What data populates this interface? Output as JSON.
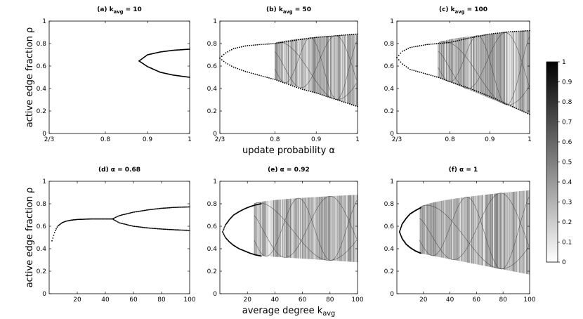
{
  "chart_data": [
    {
      "id": "a",
      "type": "scatter",
      "subtype": "bifurcation-diagram",
      "title": {
        "prefix": "(a) k",
        "sub": "avg",
        "suffix": " = 10"
      },
      "xlabel": "",
      "ylabel": "active edge fraction ρ",
      "xlim": [
        0.6667,
        1
      ],
      "ylim": [
        0,
        1
      ],
      "x_ticks": [
        {
          "value": 0.6667,
          "label": "2/3"
        },
        {
          "value": 0.8,
          "label": "0.8"
        },
        {
          "value": 0.9,
          "label": "0.9"
        },
        {
          "value": 1,
          "label": "1"
        }
      ],
      "y_ticks": [
        0,
        0.2,
        0.4,
        0.6,
        0.8,
        1
      ],
      "branches": [
        {
          "x": [
            0.88,
            0.9,
            0.93,
            0.96,
            1.0
          ],
          "y": [
            0.645,
            0.7,
            0.725,
            0.74,
            0.75
          ]
        },
        {
          "x": [
            0.88,
            0.9,
            0.93,
            0.96,
            1.0
          ],
          "y": [
            0.645,
            0.595,
            0.545,
            0.52,
            0.5
          ]
        }
      ]
    },
    {
      "id": "b",
      "type": "scatter",
      "subtype": "bifurcation-diagram",
      "title": {
        "prefix": "(b) k",
        "sub": "avg",
        "suffix": " = 50"
      },
      "xlabel": "update probability α",
      "ylabel": "",
      "xlim": [
        0.6667,
        1
      ],
      "ylim": [
        0,
        1
      ],
      "x_ticks": [
        {
          "value": 0.6667,
          "label": "2/3"
        },
        {
          "value": 0.8,
          "label": "0.8"
        },
        {
          "value": 0.9,
          "label": "0.9"
        },
        {
          "value": 1,
          "label": "1"
        }
      ],
      "y_ticks": [
        0,
        0.2,
        0.4,
        0.6,
        0.8,
        1
      ],
      "branches": [
        {
          "x": [
            0.6667,
            0.68,
            0.7,
            0.73,
            0.76,
            0.8,
            0.85,
            0.9,
            0.95,
            1.0
          ],
          "y": [
            0.67,
            0.715,
            0.755,
            0.78,
            0.79,
            0.8,
            0.83,
            0.855,
            0.87,
            0.885
          ]
        },
        {
          "x": [
            0.6667,
            0.68,
            0.7,
            0.73,
            0.76,
            0.8,
            0.83,
            0.86,
            0.9,
            0.95,
            1.0
          ],
          "y": [
            0.67,
            0.63,
            0.59,
            0.55,
            0.52,
            0.48,
            0.44,
            0.4,
            0.36,
            0.3,
            0.24
          ]
        }
      ],
      "chaos_band": {
        "x_start": 0.8,
        "x_end": 1.0,
        "upper": [
          0.8,
          0.885
        ],
        "lower": [
          0.48,
          0.24
        ]
      }
    },
    {
      "id": "c",
      "type": "scatter",
      "subtype": "bifurcation-diagram",
      "title": {
        "prefix": "(c) k",
        "sub": "avg",
        "suffix": " = 100"
      },
      "xlabel": "",
      "ylabel": "",
      "xlim": [
        0.6667,
        1
      ],
      "ylim": [
        0,
        1
      ],
      "x_ticks": [
        {
          "value": 0.6667,
          "label": "2/3"
        },
        {
          "value": 0.8,
          "label": "0.8"
        },
        {
          "value": 0.9,
          "label": "0.9"
        },
        {
          "value": 1,
          "label": "1"
        }
      ],
      "y_ticks": [
        0,
        0.2,
        0.4,
        0.6,
        0.8,
        1
      ],
      "branches": [
        {
          "x": [
            0.6667,
            0.68,
            0.7,
            0.74,
            0.77,
            0.8,
            0.85,
            0.9,
            0.95,
            1.0
          ],
          "y": [
            0.675,
            0.73,
            0.765,
            0.79,
            0.8,
            0.81,
            0.85,
            0.885,
            0.905,
            0.915
          ]
        },
        {
          "x": [
            0.6667,
            0.68,
            0.7,
            0.74,
            0.77,
            0.8,
            0.85,
            0.9,
            0.95,
            1.0
          ],
          "y": [
            0.675,
            0.62,
            0.57,
            0.53,
            0.5,
            0.46,
            0.4,
            0.33,
            0.25,
            0.17
          ]
        }
      ],
      "chaos_band": {
        "x_start": 0.77,
        "x_end": 1.0,
        "upper": [
          0.8,
          0.915
        ],
        "lower": [
          0.5,
          0.17
        ]
      }
    },
    {
      "id": "d",
      "type": "scatter",
      "subtype": "bifurcation-diagram",
      "title": {
        "prefix": "(d) α = 0.68",
        "sub": "",
        "suffix": ""
      },
      "xlabel": "",
      "ylabel": "active edge fraction ρ",
      "xlim": [
        0,
        100
      ],
      "ylim": [
        0,
        1
      ],
      "x_ticks": [
        {
          "value": 20,
          "label": "20"
        },
        {
          "value": 40,
          "label": "40"
        },
        {
          "value": 60,
          "label": "60"
        },
        {
          "value": 80,
          "label": "80"
        },
        {
          "value": 100,
          "label": "100"
        }
      ],
      "y_ticks": [
        0,
        0.2,
        0.4,
        0.6,
        0.8,
        1
      ],
      "branches": [
        {
          "x": [
            2,
            4,
            6,
            9,
            12,
            16,
            20,
            30,
            40,
            45
          ],
          "y": [
            0.47,
            0.55,
            0.6,
            0.63,
            0.645,
            0.655,
            0.66,
            0.665,
            0.665,
            0.665
          ]
        },
        {
          "x": [
            45,
            50,
            60,
            70,
            80,
            90,
            100
          ],
          "y": [
            0.665,
            0.695,
            0.725,
            0.745,
            0.76,
            0.768,
            0.772
          ]
        },
        {
          "x": [
            45,
            50,
            60,
            70,
            80,
            90,
            100
          ],
          "y": [
            0.665,
            0.63,
            0.6,
            0.585,
            0.575,
            0.568,
            0.563
          ]
        }
      ]
    },
    {
      "id": "e",
      "type": "scatter",
      "subtype": "bifurcation-diagram",
      "title": {
        "prefix": "(e) α = 0.92",
        "sub": "",
        "suffix": ""
      },
      "xlabel": "average degree k",
      "xlabel_sub": "avg",
      "ylabel": "",
      "xlim": [
        0,
        100
      ],
      "ylim": [
        0,
        1
      ],
      "x_ticks": [
        {
          "value": 20,
          "label": "20"
        },
        {
          "value": 40,
          "label": "40"
        },
        {
          "value": 60,
          "label": "60"
        },
        {
          "value": 80,
          "label": "80"
        },
        {
          "value": 100,
          "label": "100"
        }
      ],
      "y_ticks": [
        0,
        0.2,
        0.4,
        0.6,
        0.8,
        1
      ],
      "branches": [
        {
          "x": [
            2,
            4,
            7,
            10,
            14,
            18,
            22,
            26,
            30
          ],
          "y": [
            0.55,
            0.61,
            0.66,
            0.7,
            0.73,
            0.755,
            0.775,
            0.79,
            0.8
          ]
        },
        {
          "x": [
            2,
            4,
            7,
            10,
            14,
            18,
            22,
            26,
            30
          ],
          "y": [
            0.55,
            0.5,
            0.46,
            0.43,
            0.4,
            0.38,
            0.36,
            0.345,
            0.335
          ]
        }
      ],
      "chaos_band": {
        "x_start": 25,
        "x_end": 100,
        "upper": [
          0.8,
          0.88
        ],
        "lower": [
          0.34,
          0.28
        ]
      }
    },
    {
      "id": "f",
      "type": "scatter",
      "subtype": "bifurcation-diagram",
      "title": {
        "prefix": "(f) α = 1",
        "sub": "",
        "suffix": ""
      },
      "xlabel": "",
      "ylabel": "",
      "xlim": [
        0,
        100
      ],
      "ylim": [
        0,
        1
      ],
      "x_ticks": [
        {
          "value": 20,
          "label": "20"
        },
        {
          "value": 40,
          "label": "40"
        },
        {
          "value": 60,
          "label": "60"
        },
        {
          "value": 80,
          "label": "80"
        },
        {
          "value": 100,
          "label": "100"
        }
      ],
      "y_ticks": [
        0,
        0.2,
        0.4,
        0.6,
        0.8,
        1
      ],
      "branches": [
        {
          "x": [
            2,
            4,
            7,
            10,
            14,
            18
          ],
          "y": [
            0.55,
            0.62,
            0.67,
            0.71,
            0.74,
            0.765
          ]
        },
        {
          "x": [
            2,
            4,
            7,
            10,
            14,
            18
          ],
          "y": [
            0.55,
            0.49,
            0.44,
            0.41,
            0.38,
            0.36
          ]
        }
      ],
      "chaos_band": {
        "x_start": 17,
        "x_end": 100,
        "upper": [
          0.76,
          0.92
        ],
        "lower": [
          0.36,
          0.17
        ]
      }
    },
    {
      "id": "colorbar",
      "type": "heatmap",
      "range": [
        0,
        1
      ],
      "ticks": [
        0,
        0.1,
        0.2,
        0.3,
        0.4,
        0.5,
        0.6,
        0.7,
        0.8,
        0.9,
        1
      ],
      "tick_labels": [
        "0",
        "0.1",
        "0.2",
        "0.3",
        "0.4",
        "0.5",
        "0.6",
        "0.7",
        "0.8",
        "0.9",
        "1"
      ],
      "colors": {
        "low": "#ffffff",
        "high": "#000000"
      }
    }
  ]
}
